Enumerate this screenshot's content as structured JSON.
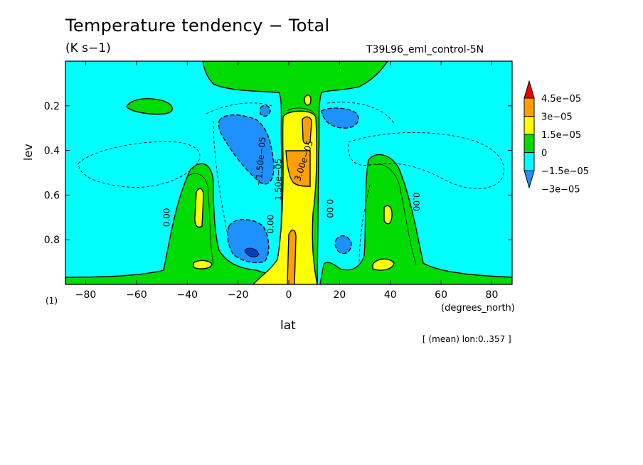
{
  "chart_data": {
    "type": "contour",
    "title": "Temperature tendency − Total",
    "units": "(K s−1)",
    "run_label": "T39L96_eml_control-5N",
    "xlabel": "lat",
    "x_units_label": "(degrees_north)",
    "ylabel": "lev",
    "panel_label": "(1)",
    "averaging_note": "[ (mean) lon:0..357 ]",
    "xlim": [
      -88,
      88
    ],
    "ylim": [
      1.0,
      0.0
    ],
    "xticks": [
      -80,
      -60,
      -40,
      -20,
      0,
      20,
      40,
      60,
      80
    ],
    "xtick_labels": [
      "−80",
      "−60",
      "−40",
      "−20",
      "0",
      "20",
      "40",
      "60",
      "80"
    ],
    "yticks": [
      0.2,
      0.4,
      0.6,
      0.8
    ],
    "ytick_labels": [
      "0.2",
      "0.4",
      "0.6",
      "0.8"
    ],
    "colorbar": {
      "levels": [
        "4.5e−05",
        "3e−05",
        "1.5e−05",
        "0",
        "−1.5e−05",
        "−3e−05"
      ],
      "colors": [
        "#f00000",
        "#ffa000",
        "#ffff00",
        "#00dc00",
        "#00ffff",
        "#1e90ff"
      ],
      "extend": "both"
    },
    "contour_labels": [
      {
        "text": "0.00",
        "lon": -47,
        "lev": 0.7,
        "angle": -90
      },
      {
        "text": "0.00",
        "lon": -6,
        "lev": 0.73,
        "angle": -90
      },
      {
        "text": "0.00",
        "lon": 15,
        "lev": 0.66,
        "angle": 90
      },
      {
        "text": "0.00",
        "lon": 49,
        "lev": 0.63,
        "angle": 90
      },
      {
        "text": "−1.50e−05",
        "lon": -10,
        "lev": 0.45,
        "angle": -85
      },
      {
        "text": "1.50e−05",
        "lon": -3,
        "lev": 0.53,
        "angle": -90
      },
      {
        "text": "3.00e−05",
        "lon": 7,
        "lev": 0.45,
        "angle": -72
      }
    ]
  }
}
